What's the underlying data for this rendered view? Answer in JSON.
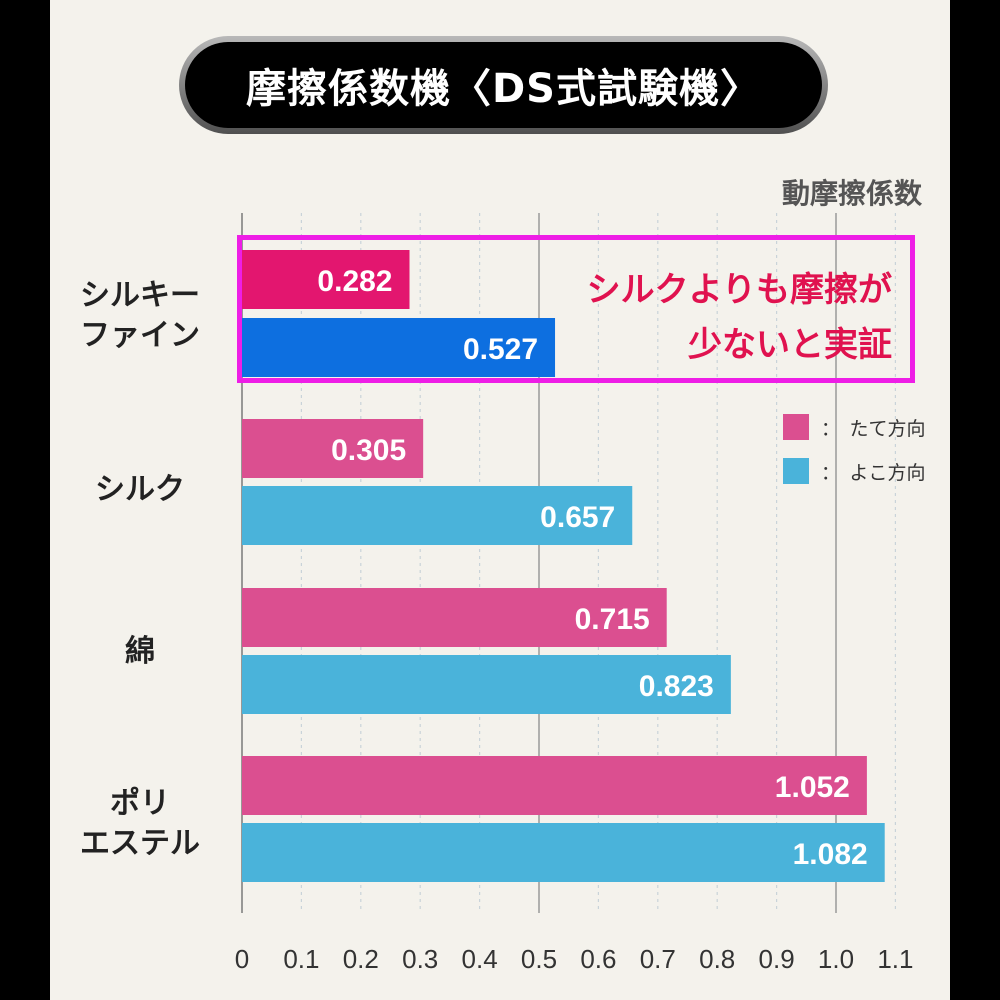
{
  "title": "摩擦係数機〈DS式試験機〉",
  "callout": {
    "line1": "シルクよりも摩擦が",
    "line2": "少ないと実証"
  },
  "chart_data": {
    "type": "bar",
    "orientation": "horizontal",
    "title": "摩擦係数機〈DS式試験機〉",
    "xlabel": "動摩擦係数",
    "ylabel": "",
    "xlim": [
      0,
      1.1
    ],
    "ticks": [
      "0",
      "0.1",
      "0.2",
      "0.3",
      "0.4",
      "0.5",
      "0.6",
      "0.7",
      "0.8",
      "0.9",
      "1.0",
      "1.1"
    ],
    "categories": [
      {
        "line1": "シルキー",
        "line2": "ファイン"
      },
      {
        "line1": "シルク",
        "line2": ""
      },
      {
        "line1": "綿",
        "line2": ""
      },
      {
        "line1": "ポリ",
        "line2": "エステル"
      }
    ],
    "series": [
      {
        "name": "：　たて方向",
        "values": [
          0.282,
          0.305,
          0.715,
          1.052
        ],
        "labels": [
          "0.282",
          "0.305",
          "0.715",
          "1.052"
        ]
      },
      {
        "name": "：　よこ方向",
        "values": [
          0.527,
          0.657,
          0.823,
          1.082
        ],
        "labels": [
          "0.527",
          "0.657",
          "0.823",
          "1.082"
        ]
      }
    ],
    "colors": {
      "tate": "#db4f90",
      "yoko": "#4ab3da",
      "highlight_tate": "#e3166f",
      "highlight_yoko": "#0d6fe0",
      "highlight_border": "#ee1ee6"
    },
    "highlighted_category": "シルキーファイン",
    "legend_position": "right"
  }
}
